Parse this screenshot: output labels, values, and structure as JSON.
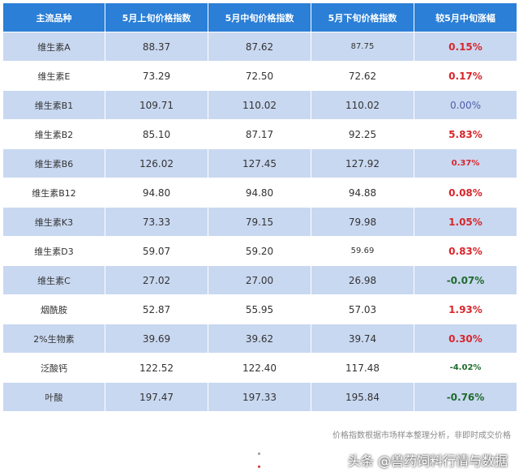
{
  "headers": [
    "主流品种",
    "5月上旬价格指数",
    "5月中旬价格指数",
    "5月下旬价格指数",
    "较5月中旬涨幅"
  ],
  "rows": [
    {
      "name": "维生素A",
      "early": "88.37",
      "mid": "87.62",
      "late": "87.75",
      "change": "0.15%",
      "dir": "up"
    },
    {
      "name": "维生素E",
      "early": "73.29",
      "mid": "72.50",
      "late": "72.62",
      "change": "0.17%",
      "dir": "up"
    },
    {
      "name": "维生素B1",
      "early": "109.71",
      "mid": "110.02",
      "late": "110.02",
      "change": "0.00%",
      "dir": "zero"
    },
    {
      "name": "维生素B2",
      "early": "85.10",
      "mid": "87.17",
      "late": "92.25",
      "change": "5.83%",
      "dir": "up"
    },
    {
      "name": "维生素B6",
      "early": "126.02",
      "mid": "127.45",
      "late": "127.92",
      "change": "0.37%",
      "dir": "up"
    },
    {
      "name": "维生素B12",
      "early": "94.80",
      "mid": "94.80",
      "late": "94.88",
      "change": "0.08%",
      "dir": "up"
    },
    {
      "name": "维生素K3",
      "early": "73.33",
      "mid": "79.15",
      "late": "79.98",
      "change": "1.05%",
      "dir": "up"
    },
    {
      "name": "维生素D3",
      "early": "59.07",
      "mid": "59.20",
      "late": "59.69",
      "change": "0.83%",
      "dir": "up"
    },
    {
      "name": "维生素C",
      "early": "27.02",
      "mid": "27.00",
      "late": "26.98",
      "change": "-0.07%",
      "dir": "down"
    },
    {
      "name": "烟酰胺",
      "early": "52.87",
      "mid": "55.95",
      "late": "57.03",
      "change": "1.93%",
      "dir": "up"
    },
    {
      "name": "2%生物素",
      "early": "39.69",
      "mid": "39.62",
      "late": "39.74",
      "change": "0.30%",
      "dir": "up"
    },
    {
      "name": "泛酸钙",
      "early": "122.52",
      "mid": "122.40",
      "late": "117.48",
      "change": "-4.02%",
      "dir": "down"
    },
    {
      "name": "叶酸",
      "early": "197.47",
      "mid": "197.33",
      "late": "195.84",
      "change": "-0.76%",
      "dir": "down"
    }
  ],
  "footnote": "价格指数根据市场样本整理分析，非即时成交价格",
  "watermark": "头条 @兽药饲料行情与数据",
  "colors": {
    "header": "#2b7fd6",
    "band": "#c9d8f1",
    "up": "#d8262b",
    "down": "#1e6b2c",
    "zero": "#4d5fa8"
  }
}
